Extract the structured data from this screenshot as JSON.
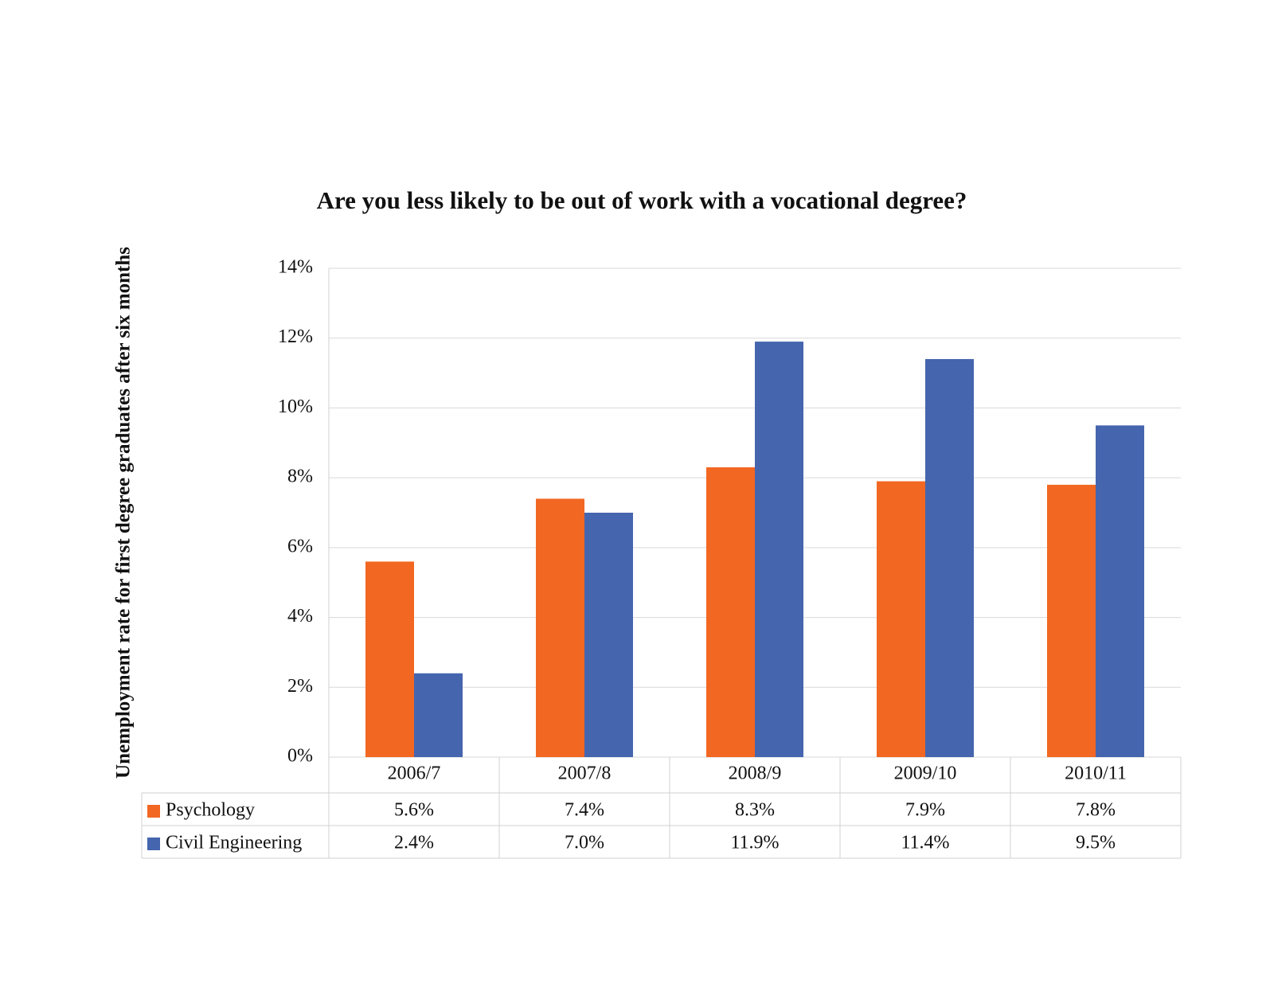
{
  "chart_data": {
    "type": "bar",
    "title": "Are you less likely to be out of work with a vocational degree?",
    "y_label": "Unemployment rate for first degree graduates after six months",
    "categories": [
      "2006/7",
      "2007/8",
      "2008/9",
      "2009/10",
      "2010/11"
    ],
    "series": [
      {
        "name": "Psychology",
        "color": "#f26722",
        "values": [
          5.6,
          7.4,
          8.3,
          7.9,
          7.8
        ],
        "value_labels": [
          "5.6%",
          "7.4%",
          "8.3%",
          "7.9%",
          "7.8%"
        ]
      },
      {
        "name": "Civil Engineering",
        "color": "#4565ae",
        "values": [
          2.4,
          7.0,
          11.9,
          11.4,
          9.5
        ],
        "value_labels": [
          "2.4%",
          "7.0%",
          "11.9%",
          "11.4%",
          "9.5%"
        ]
      }
    ],
    "ylim": [
      0,
      14
    ],
    "yticks": [
      {
        "value": 0,
        "label": "0%"
      },
      {
        "value": 2,
        "label": "2%"
      },
      {
        "value": 4,
        "label": "4%"
      },
      {
        "value": 6,
        "label": "6%"
      },
      {
        "value": 8,
        "label": "8%"
      },
      {
        "value": 10,
        "label": "10%"
      },
      {
        "value": 12,
        "label": "12%"
      },
      {
        "value": 14,
        "label": "14%"
      }
    ],
    "grid": true,
    "legend": "data-table"
  }
}
